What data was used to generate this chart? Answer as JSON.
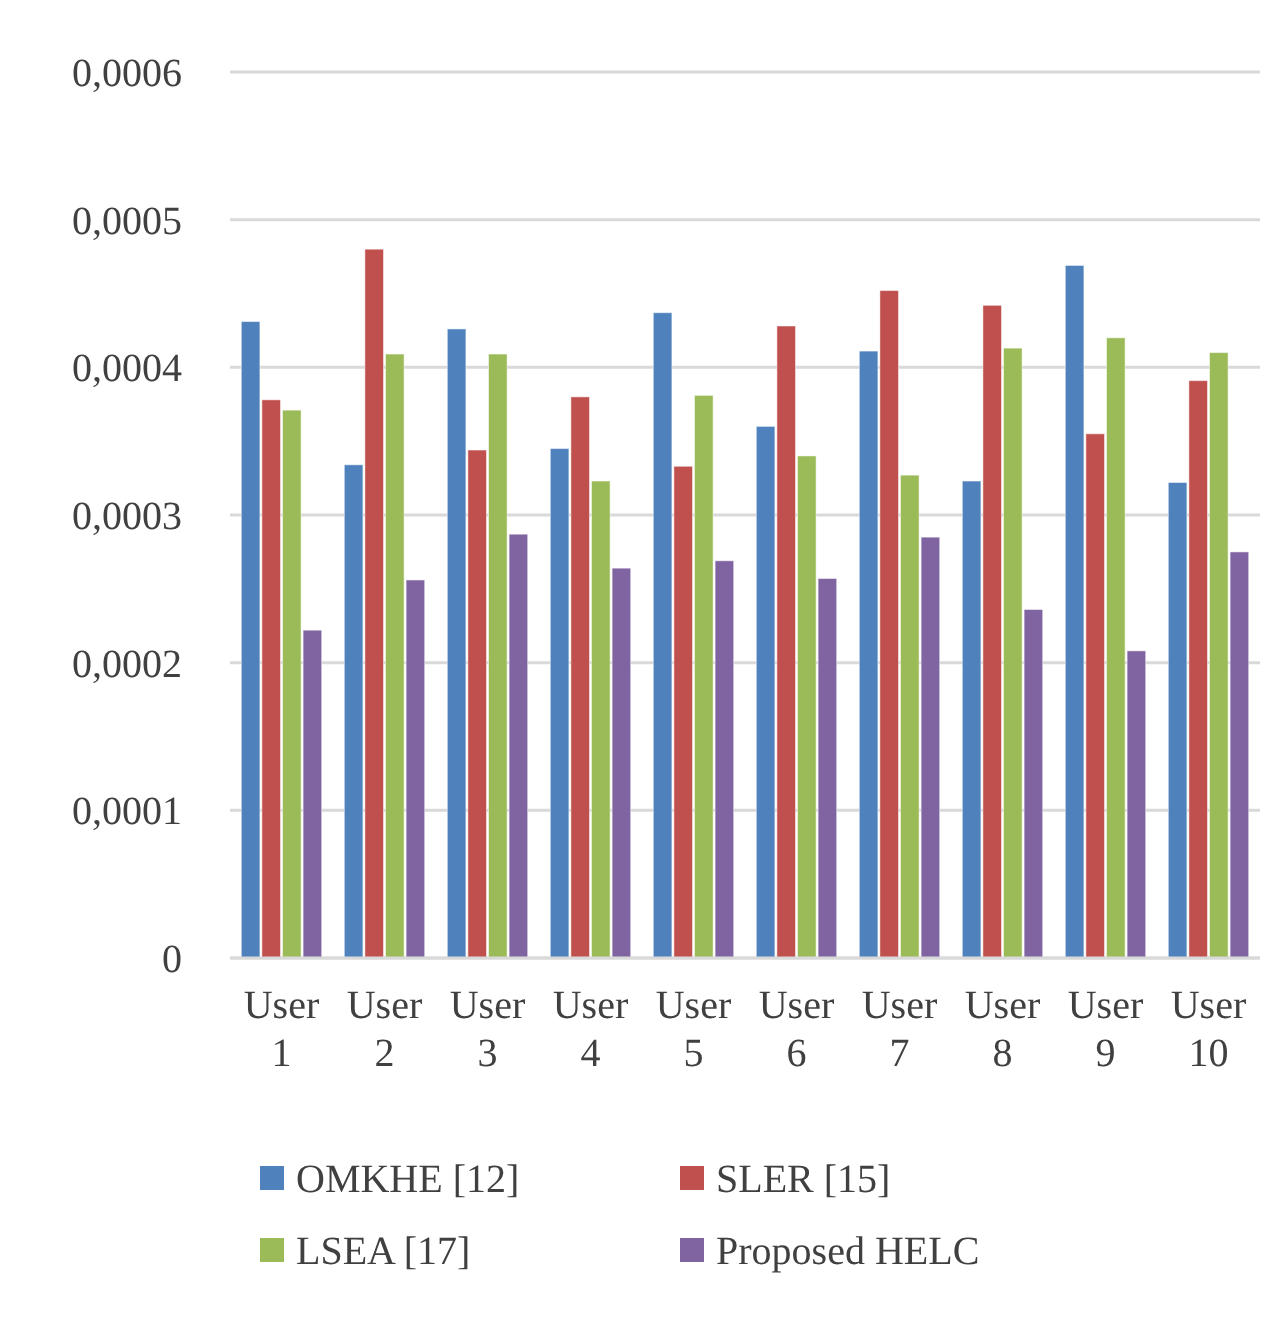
{
  "chart_data": {
    "type": "bar",
    "categories": [
      "User 1",
      "User 2",
      "User 3",
      "User 4",
      "User 5",
      "User 6",
      "User 7",
      "User 8",
      "User 9",
      "User 10"
    ],
    "series": [
      {
        "name": "OMKHE [12]",
        "color": "#4f81bd",
        "values": [
          0.000431,
          0.000334,
          0.000426,
          0.000345,
          0.000437,
          0.00036,
          0.000411,
          0.000323,
          0.000469,
          0.000322
        ]
      },
      {
        "name": "SLER [15]",
        "color": "#c0504d",
        "values": [
          0.000378,
          0.00048,
          0.000344,
          0.00038,
          0.000333,
          0.000428,
          0.000452,
          0.000442,
          0.000355,
          0.000391
        ]
      },
      {
        "name": "LSEA [17]",
        "color": "#9bbb59",
        "values": [
          0.000371,
          0.000409,
          0.000409,
          0.000323,
          0.000381,
          0.00034,
          0.000327,
          0.000413,
          0.00042,
          0.00041
        ]
      },
      {
        "name": "Proposed HELC",
        "color": "#8064a2",
        "values": [
          0.000222,
          0.000256,
          0.000287,
          0.000264,
          0.000269,
          0.000257,
          0.000285,
          0.000236,
          0.000208,
          0.000275
        ]
      }
    ],
    "ylim": [
      0,
      0.0006
    ],
    "yticks": [
      0,
      {
        "value": 0.0001,
        "label": "0,0001"
      },
      {
        "value": 0.0002,
        "label": "0,0002"
      },
      {
        "value": 0.0003,
        "label": "0,0003"
      },
      {
        "value": 0.0004,
        "label": "0,0004"
      },
      {
        "value": 0.0005,
        "label": "0,0005"
      },
      {
        "value": 0.0006,
        "label": "0,0006"
      }
    ],
    "grid": "y",
    "legend": "bottom"
  }
}
